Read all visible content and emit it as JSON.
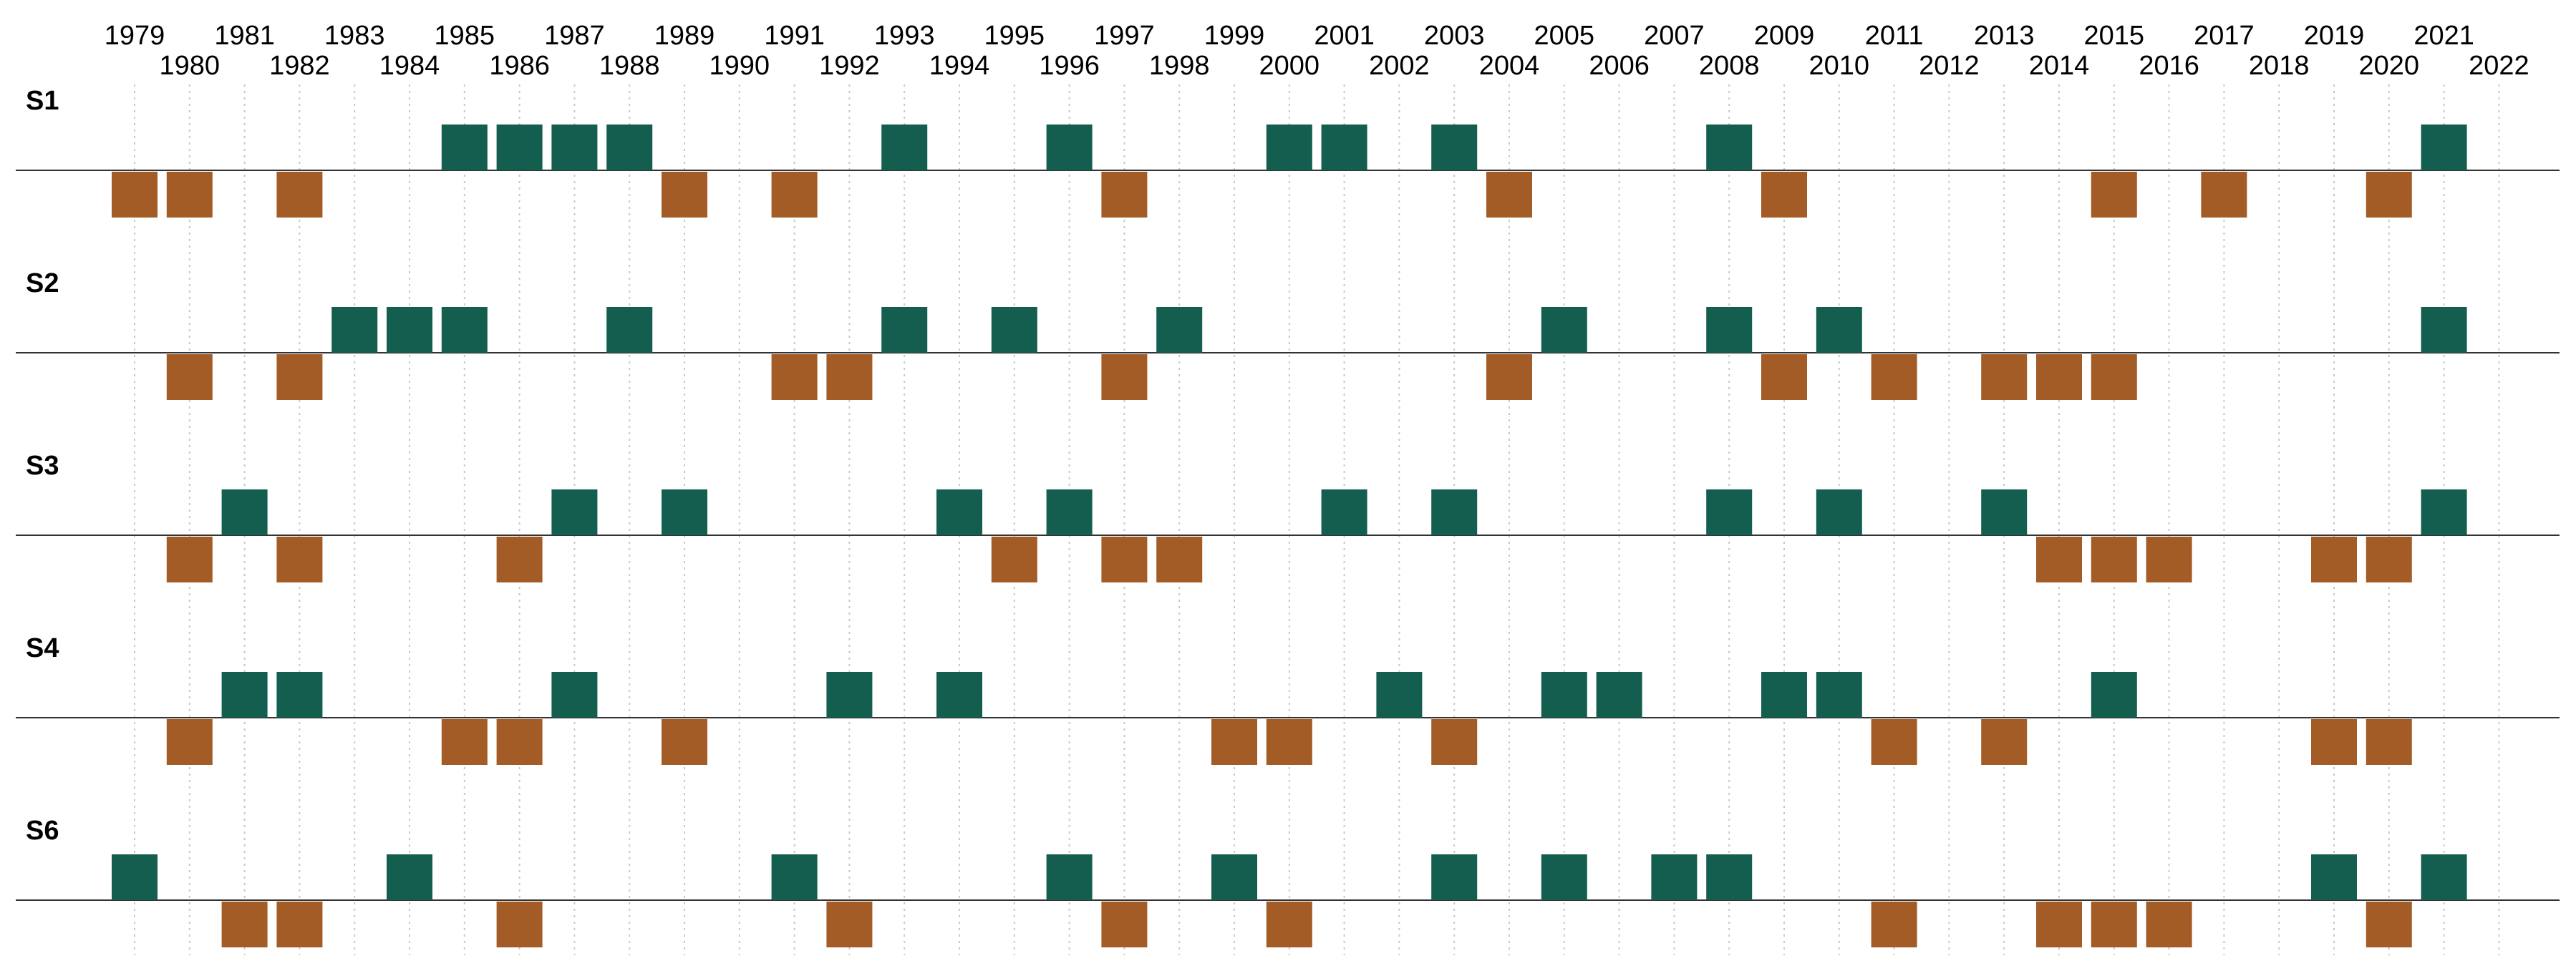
{
  "chart_data": {
    "type": "event-strip",
    "x_range": [
      1979,
      2022
    ],
    "tick_years": [
      1979,
      1980,
      1981,
      1982,
      1983,
      1984,
      1985,
      1986,
      1987,
      1988,
      1989,
      1990,
      1991,
      1992,
      1993,
      1994,
      1995,
      1996,
      1997,
      1998,
      1999,
      2000,
      2001,
      2002,
      2003,
      2004,
      2005,
      2006,
      2007,
      2008,
      2009,
      2010,
      2011,
      2012,
      2013,
      2014,
      2015,
      2016,
      2017,
      2018,
      2019,
      2020,
      2021,
      2022
    ],
    "grid": true,
    "colors": {
      "above": "#135e4e",
      "below": "#a35c25"
    },
    "series": [
      {
        "name": "S1",
        "above": [
          1985,
          1986,
          1987,
          1988,
          1993,
          1996,
          2000,
          2001,
          2003,
          2008,
          2021
        ],
        "below": [
          1979,
          1980,
          1982,
          1989,
          1991,
          1997,
          2004,
          2009,
          2015,
          2017,
          2020
        ]
      },
      {
        "name": "S2",
        "above": [
          1983,
          1984,
          1985,
          1988,
          1993,
          1995,
          1998,
          2005,
          2008,
          2010,
          2021
        ],
        "below": [
          1980,
          1982,
          1991,
          1992,
          1997,
          2004,
          2009,
          2011,
          2013,
          2014,
          2015
        ]
      },
      {
        "name": "S3",
        "above": [
          1981,
          1987,
          1989,
          1994,
          1996,
          2001,
          2003,
          2008,
          2010,
          2013,
          2021
        ],
        "below": [
          1980,
          1982,
          1986,
          1995,
          1997,
          1998,
          2014,
          2015,
          2016,
          2019,
          2020
        ]
      },
      {
        "name": "S4",
        "above": [
          1981,
          1982,
          1987,
          1992,
          1994,
          2002,
          2005,
          2006,
          2009,
          2010,
          2015
        ],
        "below": [
          1980,
          1985,
          1986,
          1989,
          1999,
          2000,
          2003,
          2011,
          2013,
          2019,
          2020
        ]
      },
      {
        "name": "S6",
        "above": [
          1979,
          1984,
          1991,
          1996,
          1999,
          2003,
          2005,
          2007,
          2008,
          2019,
          2021
        ],
        "below": [
          1981,
          1982,
          1986,
          1992,
          1997,
          2000,
          2011,
          2014,
          2015,
          2016,
          2020
        ]
      }
    ]
  }
}
